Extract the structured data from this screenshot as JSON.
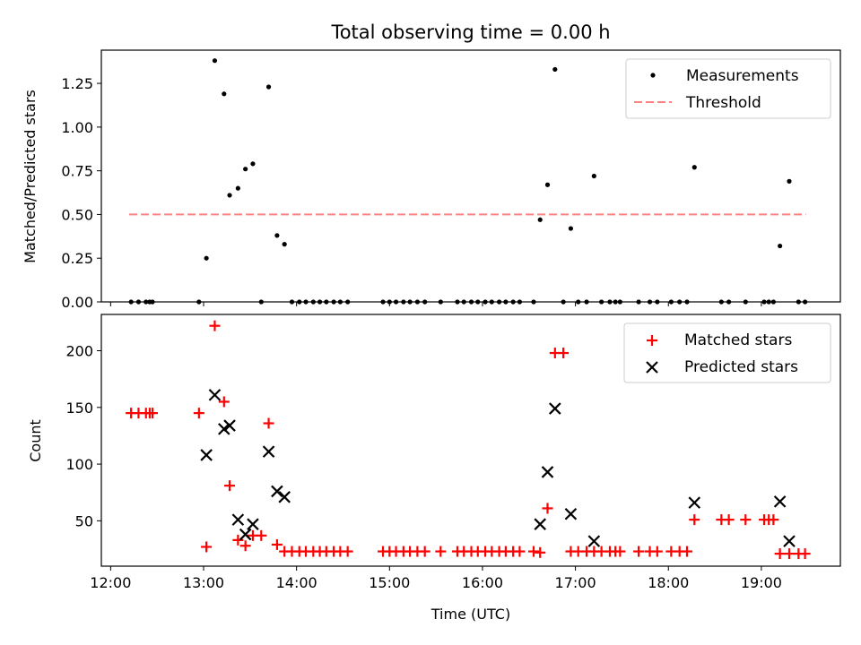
{
  "figure": {
    "title": "Total observing time = 0.00 h"
  },
  "chart_data": [
    {
      "type": "scatter",
      "name": "ratio",
      "ylabel": "Matched/Predicted stars",
      "xlim_hours": [
        11.9,
        19.85
      ],
      "ylim": [
        0,
        1.44
      ],
      "yticks": [
        0,
        0.25,
        0.5,
        0.75,
        1.0,
        1.25
      ],
      "ytick_labels": [
        "0.00",
        "0.25",
        "0.50",
        "0.75",
        "1.00",
        "1.25"
      ],
      "xtick_labels_visible": false,
      "legend": {
        "placement": "top-right",
        "entries": [
          "Measurements",
          "Threshold"
        ]
      },
      "threshold": {
        "label": "Threshold",
        "y": 0.5,
        "x_range": [
          12.2,
          19.48
        ],
        "color": "#ff8080",
        "style": "dashed"
      },
      "measurements": {
        "label": "Measurements",
        "color": "#000000",
        "points": [
          [
            12.22,
            0
          ],
          [
            12.3,
            0
          ],
          [
            12.38,
            0
          ],
          [
            12.42,
            0
          ],
          [
            12.45,
            0
          ],
          [
            12.95,
            0
          ],
          [
            13.03,
            0.25
          ],
          [
            13.12,
            1.38
          ],
          [
            13.22,
            1.19
          ],
          [
            13.28,
            0.61
          ],
          [
            13.37,
            0.65
          ],
          [
            13.45,
            0.76
          ],
          [
            13.53,
            0.79
          ],
          [
            13.62,
            0
          ],
          [
            13.7,
            1.23
          ],
          [
            13.79,
            0.38
          ],
          [
            13.87,
            0.33
          ],
          [
            13.95,
            0
          ],
          [
            14.03,
            0
          ],
          [
            14.1,
            0
          ],
          [
            14.18,
            0
          ],
          [
            14.25,
            0
          ],
          [
            14.32,
            0
          ],
          [
            14.4,
            0
          ],
          [
            14.47,
            0
          ],
          [
            14.55,
            0
          ],
          [
            14.93,
            0
          ],
          [
            15.0,
            0
          ],
          [
            15.07,
            0
          ],
          [
            15.15,
            0
          ],
          [
            15.22,
            0
          ],
          [
            15.3,
            0
          ],
          [
            15.38,
            0
          ],
          [
            15.55,
            0
          ],
          [
            15.73,
            0
          ],
          [
            15.8,
            0
          ],
          [
            15.88,
            0
          ],
          [
            15.95,
            0
          ],
          [
            16.03,
            0
          ],
          [
            16.1,
            0
          ],
          [
            16.18,
            0
          ],
          [
            16.25,
            0
          ],
          [
            16.33,
            0
          ],
          [
            16.4,
            0
          ],
          [
            16.55,
            0
          ],
          [
            16.62,
            0.47
          ],
          [
            16.7,
            0.67
          ],
          [
            16.78,
            1.33
          ],
          [
            16.87,
            0
          ],
          [
            16.95,
            0.42
          ],
          [
            17.03,
            0
          ],
          [
            17.12,
            0
          ],
          [
            17.2,
            0.72
          ],
          [
            17.28,
            0
          ],
          [
            17.37,
            0
          ],
          [
            17.43,
            0
          ],
          [
            17.48,
            0
          ],
          [
            17.68,
            0
          ],
          [
            17.8,
            0
          ],
          [
            17.88,
            0
          ],
          [
            18.03,
            0
          ],
          [
            18.12,
            0
          ],
          [
            18.2,
            0
          ],
          [
            18.28,
            0.77
          ],
          [
            18.57,
            0
          ],
          [
            18.65,
            0
          ],
          [
            18.83,
            0
          ],
          [
            19.03,
            0
          ],
          [
            19.08,
            0
          ],
          [
            19.13,
            0
          ],
          [
            19.2,
            0.32
          ],
          [
            19.3,
            0.69
          ],
          [
            19.4,
            0
          ],
          [
            19.47,
            0
          ]
        ]
      }
    },
    {
      "type": "scatter",
      "name": "counts",
      "xlabel": "Time (UTC)",
      "ylabel": "Count",
      "xlim_hours": [
        11.9,
        19.85
      ],
      "ylim": [
        10,
        232
      ],
      "yticks": [
        50,
        100,
        150,
        200
      ],
      "ytick_labels": [
        "50",
        "100",
        "150",
        "200"
      ],
      "xticks_hours": [
        12,
        13,
        14,
        15,
        16,
        17,
        18,
        19
      ],
      "xtick_labels": [
        "12:00",
        "13:00",
        "14:00",
        "15:00",
        "16:00",
        "17:00",
        "18:00",
        "19:00"
      ],
      "legend": {
        "placement": "top-right",
        "entries": [
          "Matched stars",
          "Predicted stars"
        ]
      },
      "series": [
        {
          "name": "Matched stars",
          "marker": "plus",
          "color": "#ff0000",
          "points": [
            [
              12.22,
              145
            ],
            [
              12.3,
              145
            ],
            [
              12.38,
              145
            ],
            [
              12.42,
              145
            ],
            [
              12.45,
              145
            ],
            [
              12.95,
              145
            ],
            [
              13.03,
              27
            ],
            [
              13.12,
              222
            ],
            [
              13.22,
              155
            ],
            [
              13.28,
              81
            ],
            [
              13.37,
              33
            ],
            [
              13.45,
              28
            ],
            [
              13.53,
              37
            ],
            [
              13.62,
              37
            ],
            [
              13.7,
              136
            ],
            [
              13.79,
              29
            ],
            [
              13.87,
              23
            ],
            [
              13.95,
              23
            ],
            [
              14.03,
              23
            ],
            [
              14.1,
              23
            ],
            [
              14.18,
              23
            ],
            [
              14.25,
              23
            ],
            [
              14.32,
              23
            ],
            [
              14.4,
              23
            ],
            [
              14.47,
              23
            ],
            [
              14.55,
              23
            ],
            [
              14.93,
              23
            ],
            [
              15.0,
              23
            ],
            [
              15.07,
              23
            ],
            [
              15.15,
              23
            ],
            [
              15.22,
              23
            ],
            [
              15.3,
              23
            ],
            [
              15.38,
              23
            ],
            [
              15.55,
              23
            ],
            [
              15.73,
              23
            ],
            [
              15.8,
              23
            ],
            [
              15.88,
              23
            ],
            [
              15.95,
              23
            ],
            [
              16.03,
              23
            ],
            [
              16.1,
              23
            ],
            [
              16.18,
              23
            ],
            [
              16.25,
              23
            ],
            [
              16.33,
              23
            ],
            [
              16.4,
              23
            ],
            [
              16.55,
              23
            ],
            [
              16.62,
              22
            ],
            [
              16.7,
              61
            ],
            [
              16.78,
              198
            ],
            [
              16.87,
              198
            ],
            [
              16.95,
              23
            ],
            [
              17.03,
              23
            ],
            [
              17.12,
              23
            ],
            [
              17.2,
              23
            ],
            [
              17.28,
              23
            ],
            [
              17.37,
              23
            ],
            [
              17.43,
              23
            ],
            [
              17.48,
              23
            ],
            [
              17.68,
              23
            ],
            [
              17.8,
              23
            ],
            [
              17.88,
              23
            ],
            [
              18.03,
              23
            ],
            [
              18.12,
              23
            ],
            [
              18.2,
              23
            ],
            [
              18.28,
              51
            ],
            [
              18.57,
              51
            ],
            [
              18.65,
              51
            ],
            [
              18.83,
              51
            ],
            [
              19.03,
              51
            ],
            [
              19.08,
              51
            ],
            [
              19.13,
              51
            ],
            [
              19.2,
              21
            ],
            [
              19.3,
              21
            ],
            [
              19.4,
              21
            ],
            [
              19.47,
              21
            ]
          ]
        },
        {
          "name": "Predicted stars",
          "marker": "x",
          "color": "#000000",
          "points": [
            [
              13.03,
              108
            ],
            [
              13.12,
              161
            ],
            [
              13.22,
              131
            ],
            [
              13.28,
              134
            ],
            [
              13.37,
              51
            ],
            [
              13.45,
              38
            ],
            [
              13.53,
              47
            ],
            [
              13.7,
              111
            ],
            [
              13.79,
              76
            ],
            [
              13.87,
              71
            ],
            [
              16.62,
              47
            ],
            [
              16.7,
              93
            ],
            [
              16.78,
              149
            ],
            [
              16.95,
              56
            ],
            [
              17.2,
              32
            ],
            [
              18.28,
              66
            ],
            [
              19.2,
              67
            ],
            [
              19.3,
              32
            ]
          ]
        }
      ]
    }
  ]
}
